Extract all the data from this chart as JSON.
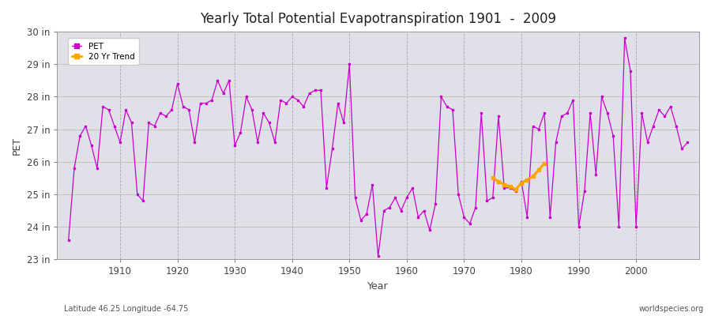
{
  "title": "Yearly Total Potential Evapotranspiration 1901  -  2009",
  "xlabel": "Year",
  "ylabel": "PET",
  "footnote_left": "Latitude 46.25 Longitude -64.75",
  "footnote_right": "worldspecies.org",
  "pet_color": "#cc00cc",
  "trend_color": "#FFA500",
  "fig_bg_color": "#ffffff",
  "plot_bg_color": "#e0e0e8",
  "ylim": [
    23,
    30
  ],
  "xlim": [
    1899,
    2011
  ],
  "yticks": [
    23,
    24,
    25,
    26,
    27,
    28,
    29,
    30
  ],
  "ytick_labels": [
    "23 in",
    "24 in",
    "25 in",
    "26 in",
    "27 in",
    "28 in",
    "29 in",
    "30 in"
  ],
  "xticks": [
    1910,
    1920,
    1930,
    1940,
    1950,
    1960,
    1970,
    1980,
    1990,
    2000
  ],
  "years": [
    1901,
    1902,
    1903,
    1904,
    1905,
    1906,
    1907,
    1908,
    1909,
    1910,
    1911,
    1912,
    1913,
    1914,
    1915,
    1916,
    1917,
    1918,
    1919,
    1920,
    1921,
    1922,
    1923,
    1924,
    1925,
    1926,
    1927,
    1928,
    1929,
    1930,
    1931,
    1932,
    1933,
    1934,
    1935,
    1936,
    1937,
    1938,
    1939,
    1940,
    1941,
    1942,
    1943,
    1944,
    1945,
    1946,
    1947,
    1948,
    1949,
    1950,
    1951,
    1952,
    1953,
    1954,
    1955,
    1956,
    1957,
    1958,
    1959,
    1960,
    1961,
    1962,
    1963,
    1964,
    1965,
    1966,
    1967,
    1968,
    1969,
    1970,
    1971,
    1972,
    1973,
    1974,
    1975,
    1976,
    1977,
    1978,
    1979,
    1980,
    1981,
    1982,
    1983,
    1984,
    1985,
    1986,
    1987,
    1988,
    1989,
    1990,
    1991,
    1992,
    1993,
    1994,
    1995,
    1996,
    1997,
    1998,
    1999,
    2000,
    2001,
    2002,
    2003,
    2004,
    2005,
    2006,
    2007,
    2008,
    2009
  ],
  "pet_values": [
    23.6,
    25.8,
    26.8,
    27.1,
    26.5,
    25.8,
    27.7,
    27.6,
    27.1,
    26.6,
    27.6,
    27.2,
    25.0,
    24.8,
    27.2,
    27.1,
    27.5,
    27.4,
    27.6,
    28.4,
    27.7,
    27.6,
    26.6,
    27.8,
    27.8,
    27.9,
    28.5,
    28.1,
    28.5,
    26.5,
    26.9,
    28.0,
    27.6,
    26.6,
    27.5,
    27.2,
    26.6,
    27.9,
    27.8,
    28.0,
    27.9,
    27.7,
    28.1,
    28.2,
    28.2,
    25.2,
    26.4,
    27.8,
    27.2,
    29.0,
    24.9,
    24.2,
    24.4,
    25.3,
    23.1,
    24.5,
    24.6,
    24.9,
    24.5,
    24.9,
    25.2,
    24.3,
    24.5,
    23.9,
    24.7,
    28.0,
    27.7,
    27.6,
    25.0,
    24.3,
    24.1,
    24.6,
    27.5,
    24.8,
    24.9,
    27.4,
    25.2,
    25.2,
    25.1,
    25.4,
    24.3,
    27.1,
    27.0,
    27.5,
    24.3,
    26.6,
    27.4,
    27.5,
    27.9,
    24.0,
    25.1,
    27.5,
    25.6,
    28.0,
    27.5,
    26.8,
    24.0,
    29.8,
    28.8,
    24.0,
    27.5,
    26.6,
    27.1,
    27.6,
    27.4,
    27.7,
    27.1,
    26.4,
    26.6
  ],
  "trend_years": [
    1975,
    1976,
    1977,
    1978,
    1979,
    1980,
    1981,
    1982,
    1983,
    1984
  ],
  "trend_values": [
    25.5,
    25.4,
    25.3,
    25.25,
    25.15,
    25.35,
    25.45,
    25.55,
    25.75,
    25.95
  ]
}
